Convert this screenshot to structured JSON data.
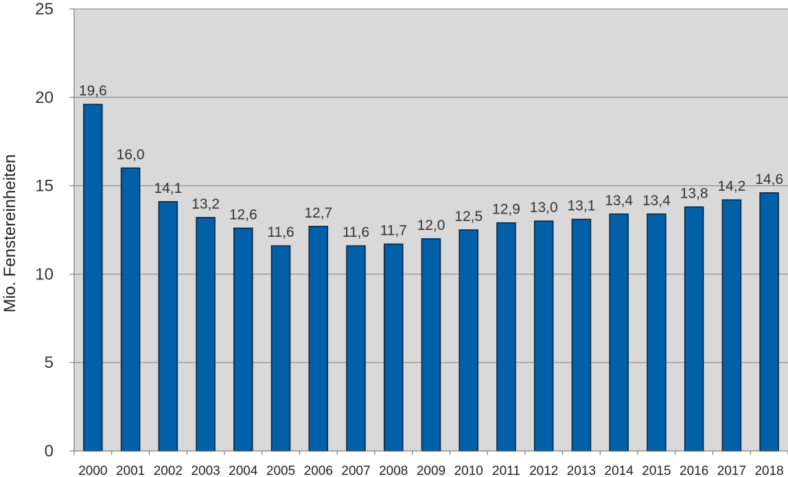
{
  "chart_data": {
    "type": "bar",
    "title": "",
    "xlabel": "",
    "ylabel": "Mio. Fenstereinheiten",
    "categories": [
      "2000",
      "2001",
      "2002",
      "2003",
      "2004",
      "2005",
      "2006",
      "2007",
      "2008",
      "2009",
      "2010",
      "2011",
      "2012",
      "2013",
      "2014",
      "2015",
      "2016",
      "2017",
      "2018"
    ],
    "values": [
      19.6,
      16.0,
      14.1,
      13.2,
      12.6,
      11.6,
      12.7,
      11.6,
      11.7,
      12.0,
      12.5,
      12.9,
      13.0,
      13.1,
      13.4,
      13.4,
      13.8,
      14.2,
      14.6
    ],
    "value_labels": [
      "19,6",
      "16,0",
      "14,1",
      "13,2",
      "12,6",
      "11,6",
      "12,7",
      "11,6",
      "11,7",
      "12,0",
      "12,5",
      "12,9",
      "13,0",
      "13,1",
      "13,4",
      "13,4",
      "13,8",
      "14,2",
      "14,6"
    ],
    "yticks": [
      0,
      5,
      10,
      15,
      20,
      25
    ],
    "ylim": [
      0,
      25
    ],
    "grid": true,
    "legend": "none",
    "colors": {
      "bar": "#0061A8",
      "bar_border": "#0A1F33",
      "plot_background": "#D9D9DA",
      "grid": "#7F7F7F",
      "axis": "#666666"
    }
  }
}
